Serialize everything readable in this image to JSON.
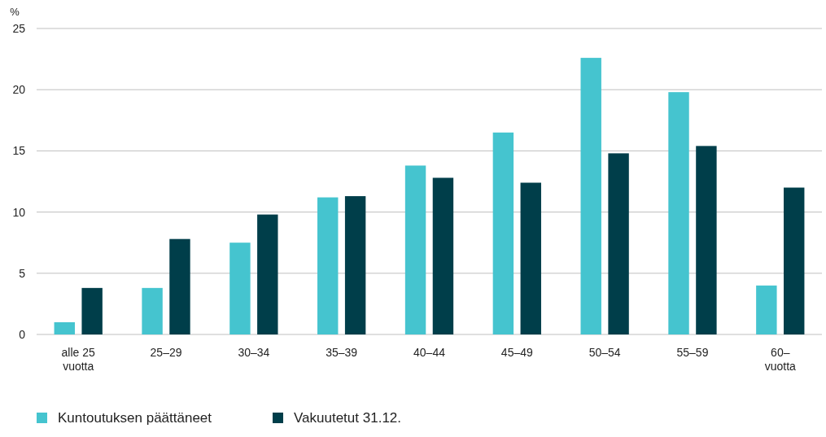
{
  "chart_data": {
    "type": "bar",
    "ylabel": "%",
    "categories": [
      "alle 25\nvuotta",
      "25–29",
      "30–34",
      "35–39",
      "40–44",
      "45–49",
      "50–54",
      "55–59",
      "60–\nvuotta"
    ],
    "series": [
      {
        "name": "Kuntoutuksen päättäneet",
        "color": "#45c4cf",
        "values": [
          1.0,
          3.8,
          7.5,
          11.2,
          13.8,
          16.5,
          22.6,
          19.8,
          4.0
        ]
      },
      {
        "name": "Vakuutetut 31.12.",
        "color": "#003e4a",
        "values": [
          3.8,
          7.8,
          9.8,
          11.3,
          12.8,
          12.4,
          14.8,
          15.4,
          12.0
        ]
      }
    ],
    "ylim": [
      0,
      25
    ],
    "yticks": [
      0,
      5,
      10,
      15,
      20,
      25
    ],
    "grid": "y",
    "legend": "bottom left"
  }
}
